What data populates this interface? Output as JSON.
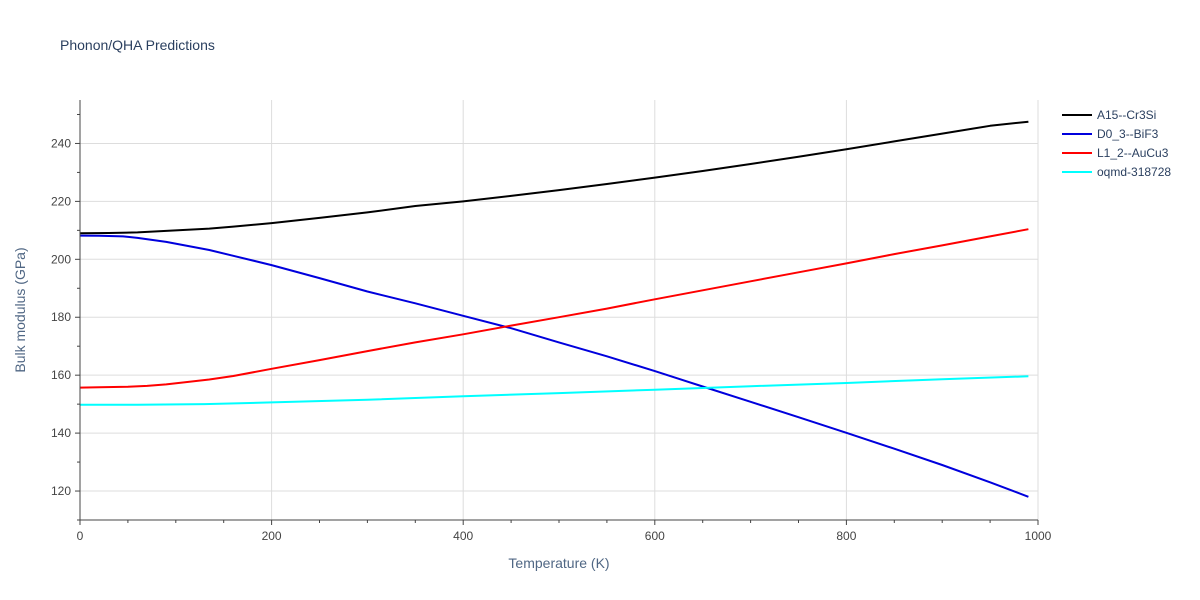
{
  "chart_data": {
    "type": "line",
    "title": "Phonon/QHA Predictions",
    "xlabel": "Temperature (K)",
    "ylabel": "Bulk modulus (GPa)",
    "xlim": [
      0,
      1000
    ],
    "ylim": [
      110,
      255
    ],
    "x_ticks": [
      0,
      200,
      400,
      600,
      800,
      1000
    ],
    "y_ticks": [
      120,
      140,
      160,
      180,
      200,
      220,
      240
    ],
    "grid": true,
    "legend_position": "top-right",
    "series": [
      {
        "name": "A15--Cr3Si",
        "color": "#000000",
        "x": [
          0,
          30,
          60,
          90,
          135,
          160,
          200,
          250,
          300,
          350,
          400,
          450,
          500,
          550,
          600,
          650,
          700,
          750,
          800,
          850,
          900,
          950,
          990
        ],
        "y": [
          209.0,
          209.1,
          209.3,
          209.8,
          210.6,
          211.3,
          212.5,
          214.3,
          216.2,
          218.4,
          220.0,
          221.9,
          223.9,
          226.0,
          228.2,
          230.5,
          232.9,
          235.4,
          238.0,
          240.7,
          243.4,
          246.1,
          247.5
        ]
      },
      {
        "name": "D0_3--BiF3",
        "color": "#0000dd",
        "x": [
          0,
          20,
          45,
          60,
          90,
          135,
          160,
          200,
          250,
          300,
          350,
          400,
          450,
          500,
          550,
          600,
          650,
          700,
          750,
          800,
          850,
          900,
          950,
          990
        ],
        "y": [
          208.2,
          208.1,
          207.9,
          207.4,
          206.0,
          203.2,
          201.2,
          198.0,
          193.5,
          188.9,
          184.8,
          180.5,
          176.2,
          171.3,
          166.5,
          161.4,
          156.1,
          150.8,
          145.5,
          140.1,
          134.6,
          129.0,
          123.0,
          118.0
        ]
      },
      {
        "name": "L1_2--AuCu3",
        "color": "#ff0000",
        "x": [
          0,
          20,
          50,
          70,
          90,
          135,
          160,
          200,
          250,
          300,
          350,
          400,
          450,
          500,
          550,
          600,
          650,
          700,
          750,
          800,
          850,
          900,
          950,
          990
        ],
        "y": [
          155.7,
          155.8,
          156.0,
          156.3,
          156.8,
          158.5,
          159.7,
          162.2,
          165.2,
          168.3,
          171.3,
          174.1,
          177.1,
          180.0,
          183.0,
          186.2,
          189.3,
          192.4,
          195.5,
          198.6,
          201.8,
          204.8,
          207.9,
          210.4
        ]
      },
      {
        "name": "oqmd-318728",
        "color": "#00ffff",
        "x": [
          0,
          60,
          130,
          200,
          300,
          400,
          500,
          600,
          700,
          800,
          900,
          990
        ],
        "y": [
          149.8,
          149.8,
          150.0,
          150.6,
          151.5,
          152.7,
          153.8,
          155.0,
          156.2,
          157.3,
          158.6,
          159.6
        ]
      }
    ]
  }
}
